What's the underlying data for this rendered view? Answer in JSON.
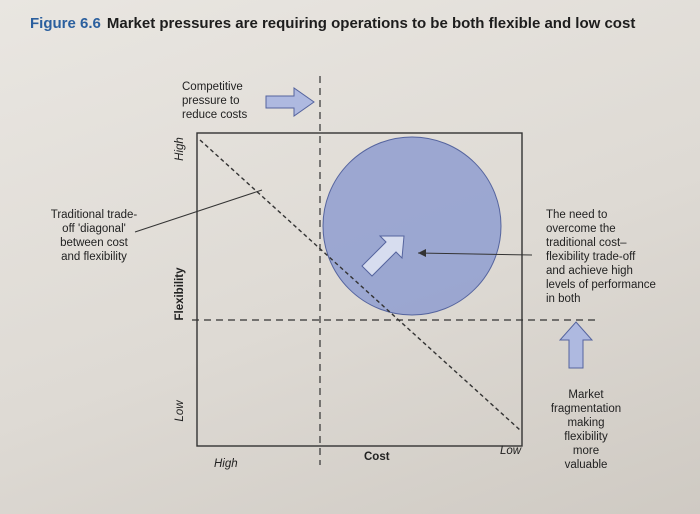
{
  "caption": {
    "figure_number": "Figure 6.6",
    "title": "Market pressures are requiring operations to be both flexible and low cost"
  },
  "annotations": {
    "competitive_pressure": [
      "Competitive",
      "pressure to",
      "reduce costs"
    ],
    "traditional_diagonal": [
      "Traditional trade-",
      "off 'diagonal'",
      "between cost",
      "and flexibility"
    ],
    "need_to_overcome": [
      "The need to",
      "overcome the",
      "traditional cost–",
      "flexibility trade-off",
      "and achieve high",
      "levels of performance",
      "in both"
    ],
    "market_fragmentation": [
      "Market",
      "fragmentation",
      "making",
      "flexibility",
      "more",
      "valuable"
    ]
  },
  "axes": {
    "y_label": "Flexibility",
    "y_high": "High",
    "y_low": "Low",
    "x_label": "Cost",
    "x_high": "High",
    "x_low": "Low"
  },
  "colors": {
    "circle_fill": "#8f9dd0",
    "arrow_fill": "#aeb9e0",
    "line": "#333333"
  }
}
